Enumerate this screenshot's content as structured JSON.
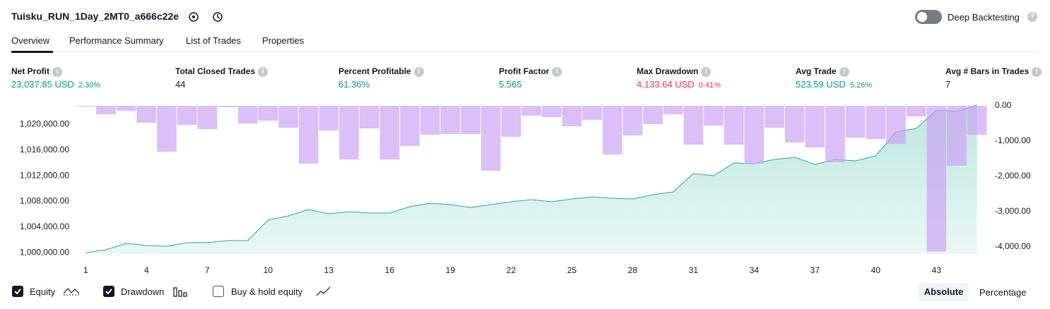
{
  "header": {
    "title": "Tuisku_RUN_1Day_2MT0_a666c22e",
    "deep_backtesting": "Deep Backtesting"
  },
  "tabs": [
    "Overview",
    "Performance Summary",
    "List of Trades",
    "Properties"
  ],
  "metrics": [
    {
      "label": "Net Profit",
      "value": "23,037.85 USD",
      "percent": "2.30%",
      "color": "#089981"
    },
    {
      "label": "Total Closed Trades",
      "value": "44",
      "color": "#131722"
    },
    {
      "label": "Percent Profitable",
      "value": "61.36%",
      "color": "#089981"
    },
    {
      "label": "Profit Factor",
      "value": "5.565",
      "color": "#089981"
    },
    {
      "label": "Max Drawdown",
      "value": "4,133.64 USD",
      "percent": "0.41%",
      "color": "#f23645"
    },
    {
      "label": "Avg Trade",
      "value": "523.59 USD",
      "percent": "5.26%",
      "color": "#089981"
    },
    {
      "label": "Avg # Bars in Trades",
      "value": "7",
      "color": "#131722"
    }
  ],
  "chart_data": {
    "type": "line",
    "x": [
      1,
      2,
      3,
      4,
      5,
      6,
      7,
      8,
      9,
      10,
      11,
      12,
      13,
      14,
      15,
      16,
      17,
      18,
      19,
      20,
      21,
      22,
      23,
      24,
      25,
      26,
      27,
      28,
      29,
      30,
      31,
      32,
      33,
      34,
      35,
      36,
      37,
      38,
      39,
      40,
      41,
      42,
      43,
      44,
      45
    ],
    "xlim": [
      0.5,
      45.5
    ],
    "xticks": [
      1,
      4,
      7,
      10,
      13,
      16,
      19,
      22,
      25,
      28,
      31,
      34,
      37,
      40,
      43
    ],
    "ylim": [
      999800,
      1022900
    ],
    "yticks": [
      {
        "value": 1000000,
        "label": "1,000,000.00"
      },
      {
        "value": 1004000,
        "label": "1,004,000.00"
      },
      {
        "value": 1008000,
        "label": "1,008,000.00"
      },
      {
        "value": 1012000,
        "label": "1,012,000.00"
      },
      {
        "value": 1016000,
        "label": "1,016,000.00"
      },
      {
        "value": 1020000,
        "label": "1,020,000.00"
      }
    ],
    "y2lim": [
      -4200,
      0
    ],
    "y2ticks": [
      {
        "value": 0,
        "label": "0.00"
      },
      {
        "value": -1000,
        "label": "-1,000.00"
      },
      {
        "value": -2000,
        "label": "-2,000.00"
      },
      {
        "value": -3000,
        "label": "-3,000.00"
      },
      {
        "value": -4000,
        "label": "-4,000.00"
      }
    ],
    "grid": false,
    "series": [
      {
        "name": "Equity",
        "type": "area",
        "color": "#22ab94",
        "values": [
          1000000,
          1000460,
          1001450,
          1001120,
          1001010,
          1001560,
          1001560,
          1001890,
          1001890,
          1005080,
          1005740,
          1006730,
          1006070,
          1006400,
          1006180,
          1006180,
          1007170,
          1007720,
          1007500,
          1007060,
          1007500,
          1007940,
          1008270,
          1007940,
          1008380,
          1008710,
          1008490,
          1008380,
          1009040,
          1009480,
          1012340,
          1012010,
          1013990,
          1013880,
          1014540,
          1014870,
          1013770,
          1014540,
          1014320,
          1015090,
          1018830,
          1019380,
          1022240,
          1022020,
          1023037.85
        ]
      },
      {
        "name": "Drawdown",
        "type": "bar",
        "axis": "y2",
        "color": "#cda2f6",
        "values": [
          -20,
          -240,
          -140,
          -480,
          -1300,
          -540,
          -660,
          -40,
          -500,
          -420,
          -620,
          -1640,
          -700,
          -1520,
          -640,
          -1520,
          -1140,
          -820,
          -800,
          -800,
          -1840,
          -880,
          -280,
          -320,
          -580,
          -400,
          -1380,
          -840,
          -520,
          -240,
          -1100,
          -560,
          -1100,
          -1640,
          -620,
          -1040,
          -1180,
          -1600,
          -900,
          -940,
          -1080,
          -300,
          -4133.64,
          -1700,
          -820
        ]
      }
    ]
  },
  "controls": {
    "buy_hold": "Buy & hold equity",
    "absolute": "Absolute",
    "percentage": "Percentage"
  }
}
